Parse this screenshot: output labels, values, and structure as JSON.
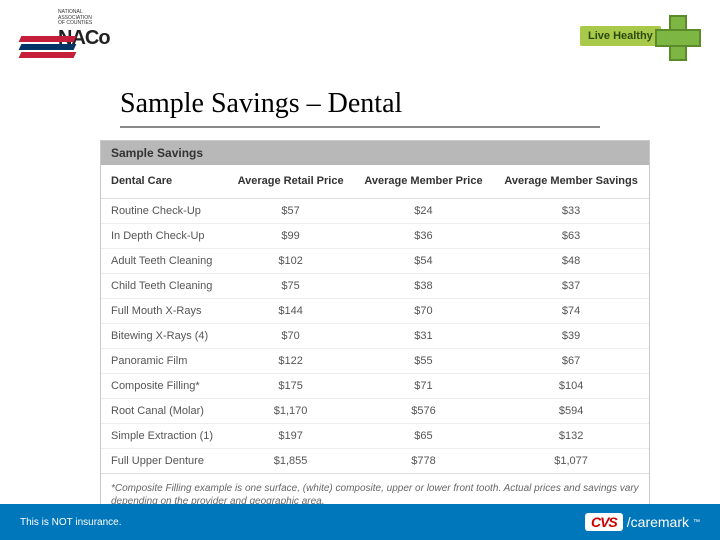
{
  "header": {
    "naco_small_line1": "National",
    "naco_small_line2": "Association",
    "naco_small_line3": "of Counties",
    "naco_big": "NACo",
    "live_healthy": "Live Healthy"
  },
  "title": "Sample Savings – Dental",
  "table": {
    "section_title": "Sample Savings",
    "columns": [
      "Dental Care",
      "Average Retail Price",
      "Average Member Price",
      "Average Member Savings"
    ],
    "rows": [
      [
        "Routine Check-Up",
        "$57",
        "$24",
        "$33"
      ],
      [
        "In Depth Check-Up",
        "$99",
        "$36",
        "$63"
      ],
      [
        "Adult Teeth Cleaning",
        "$102",
        "$54",
        "$48"
      ],
      [
        "Child Teeth Cleaning",
        "$75",
        "$38",
        "$37"
      ],
      [
        "Full Mouth X-Rays",
        "$144",
        "$70",
        "$74"
      ],
      [
        "Bitewing X-Rays (4)",
        "$70",
        "$31",
        "$39"
      ],
      [
        "Panoramic Film",
        "$122",
        "$55",
        "$67"
      ],
      [
        "Composite Filling*",
        "$175",
        "$71",
        "$104"
      ],
      [
        "Root Canal (Molar)",
        "$1,170",
        "$576",
        "$594"
      ],
      [
        "Simple Extraction (1)",
        "$197",
        "$65",
        "$132"
      ],
      [
        "Full Upper Denture",
        "$1,855",
        "$778",
        "$1,077"
      ]
    ],
    "footnote": "*Composite Filling example is one surface, (white) composite, upper or lower front tooth. Actual prices and savings vary depending on the provider and geographic area."
  },
  "footer": {
    "disclaimer": "This is NOT insurance.",
    "cvs": "CVS",
    "caremark": "/caremark",
    "tm": "™"
  },
  "colors": {
    "footer_bg": "#0077bb",
    "section_bg": "#b8b8b8",
    "border": "#c8c8c8",
    "row_border": "#eee",
    "green": "#a8c94a",
    "red": "#c41e3a",
    "blue": "#003366"
  }
}
